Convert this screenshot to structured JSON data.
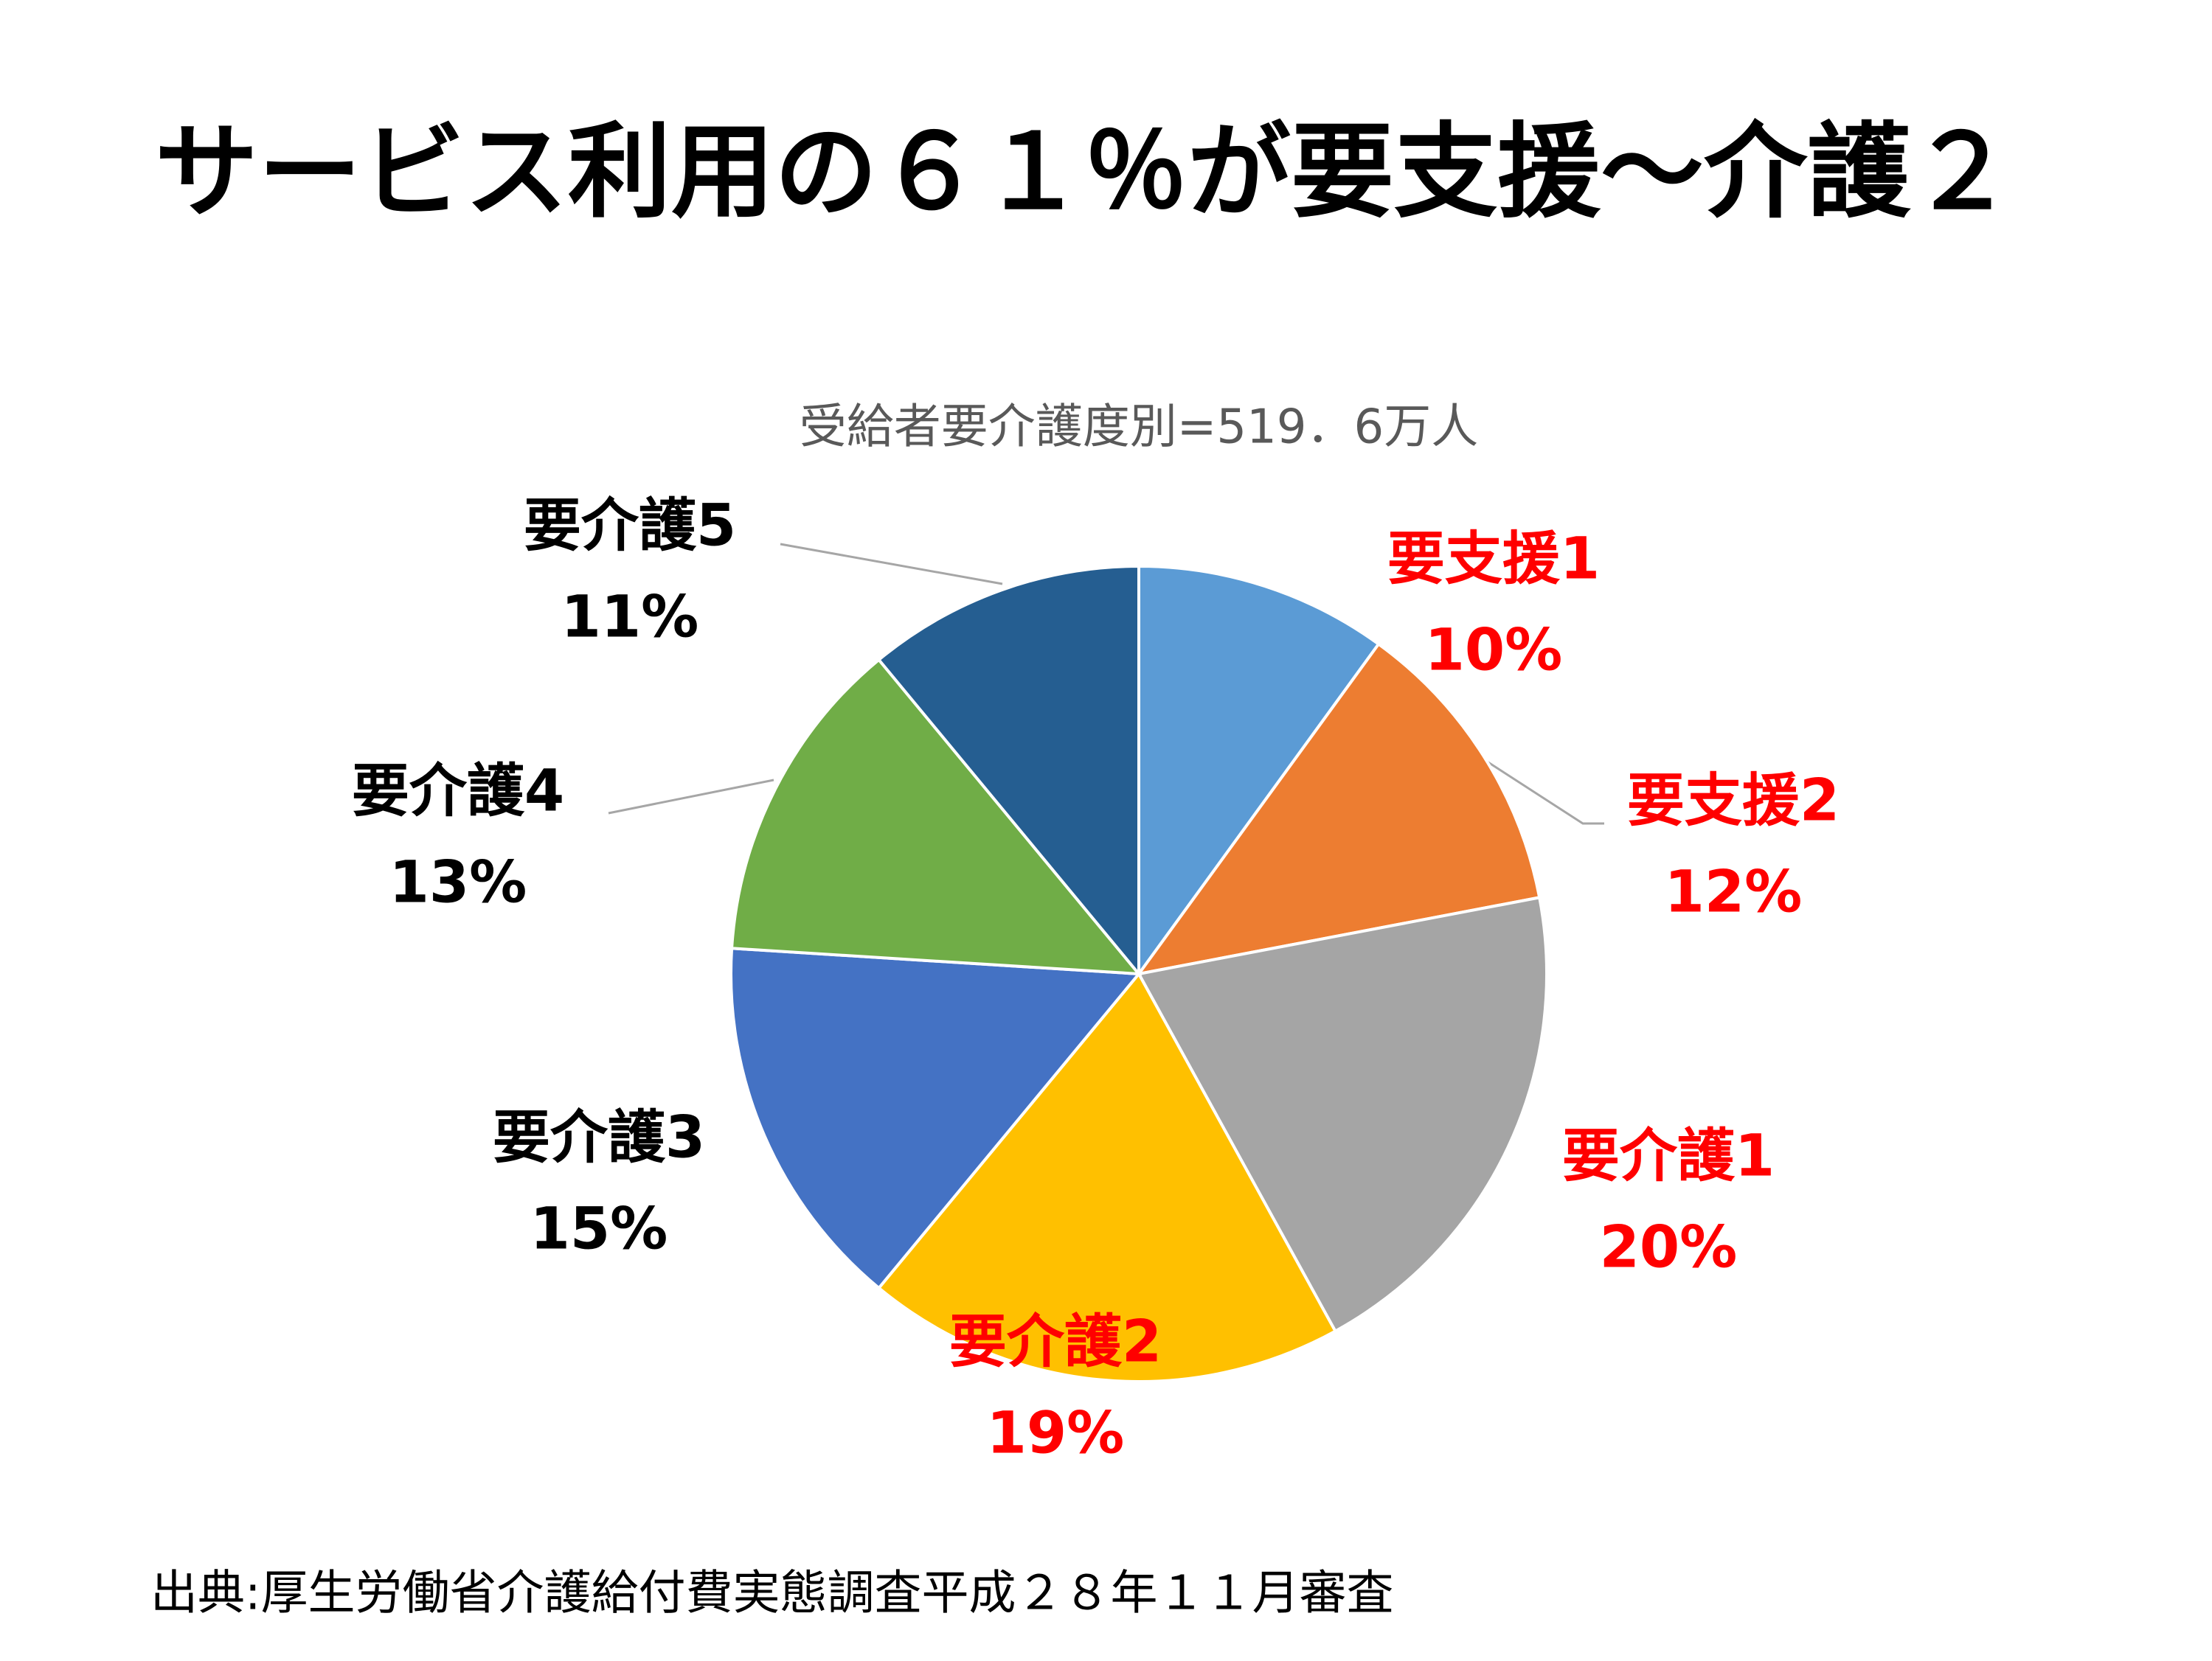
{
  "chart_data": {
    "type": "pie",
    "title": "サービス利用の６１％が要支援～介護２",
    "subtitle": "受給者要介護度別=519．6万人",
    "source": "出典:厚生労働省介護給付費実態調査平成２８年１１月審査",
    "categories": [
      "要支援1",
      "要支援2",
      "要介護1",
      "要介護2",
      "要介護3",
      "要介護4",
      "要介護5"
    ],
    "values": [
      10,
      12,
      20,
      19,
      15,
      13,
      11
    ],
    "value_labels": [
      "10%",
      "12%",
      "20%",
      "19%",
      "15%",
      "13%",
      "11%"
    ],
    "colors": [
      "#5b9bd5",
      "#ed7d31",
      "#a5a5a5",
      "#ffc000",
      "#4472c4",
      "#70ad47",
      "#255e91"
    ],
    "label_colors": [
      "#ff0000",
      "#ff0000",
      "#ff0000",
      "#ff0000",
      "#000000",
      "#000000",
      "#000000"
    ]
  }
}
